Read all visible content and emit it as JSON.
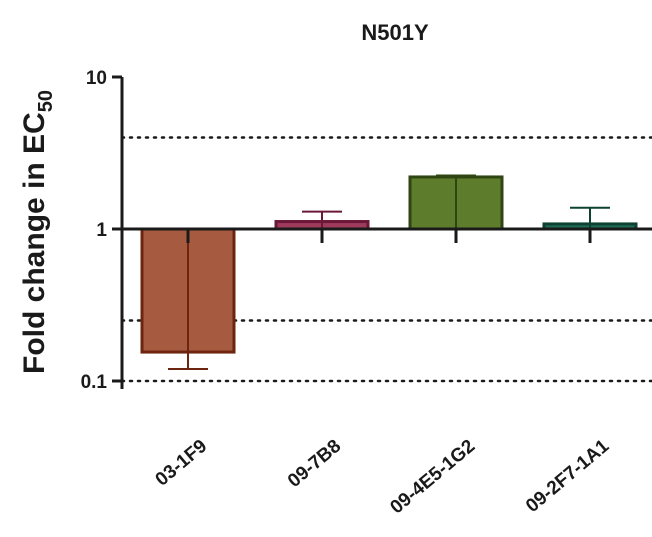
{
  "chart_data": {
    "type": "bar",
    "title": "N501Y",
    "ylabel": "Fold change in EC",
    "ylabel_subscript": "50",
    "yscale": "log",
    "ylim": [
      0.1,
      10
    ],
    "yticks": [
      "0.1",
      "1",
      "10"
    ],
    "reference_lines": [
      0.25,
      4
    ],
    "baseline": 1,
    "categories": [
      "03-1F9",
      "09-7B8",
      "09-4E5-1G2",
      "09-2F7-1A1"
    ],
    "values": [
      0.155,
      1.12,
      2.2,
      1.08
    ],
    "error": [
      {
        "low": 0.12,
        "high": 0.85
      },
      {
        "low": 0.85,
        "high": 1.3
      },
      {
        "low": 0.85,
        "high": 2.25
      },
      {
        "low": 0.85,
        "high": 1.38
      }
    ],
    "colors": [
      {
        "fill": "#a65a3f",
        "stroke": "#6e2510"
      },
      {
        "fill": "#9e3a5a",
        "stroke": "#6b1838"
      },
      {
        "fill": "#5e7d2c",
        "stroke": "#2f4512"
      },
      {
        "fill": "#1f6b55",
        "stroke": "#0d4233"
      }
    ],
    "grid": false
  }
}
